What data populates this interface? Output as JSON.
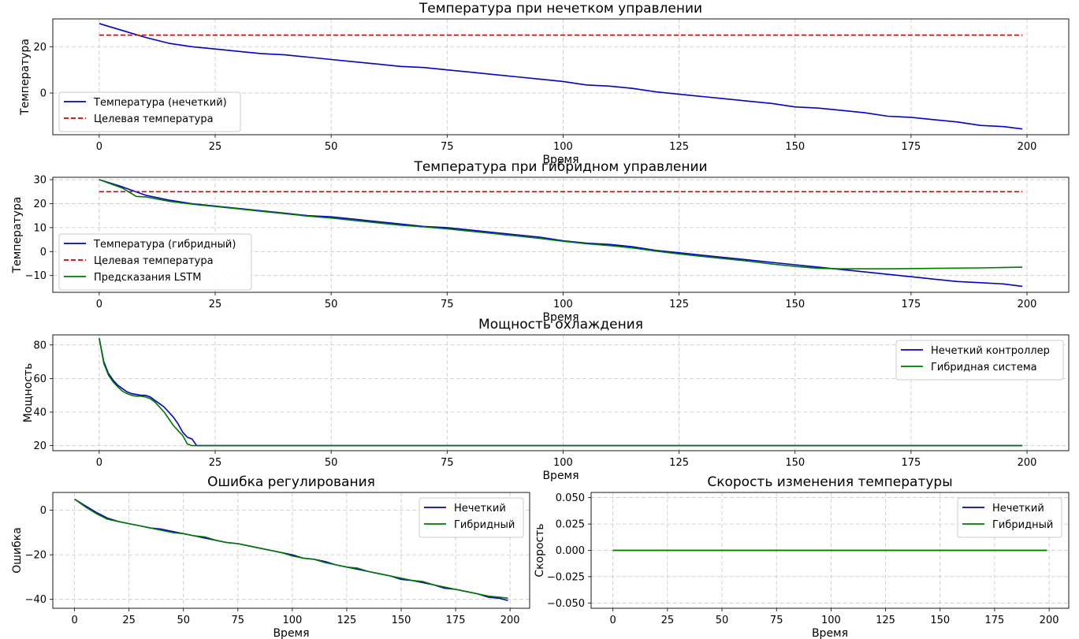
{
  "chart_data": [
    {
      "id": "p1",
      "type": "line",
      "title": "Температура при нечетком управлении",
      "xlabel": "Время",
      "ylabel": "Температура",
      "xlim": [
        -10,
        209
      ],
      "ylim": [
        -18,
        32
      ],
      "xticks": [
        0,
        25,
        50,
        75,
        100,
        125,
        150,
        175,
        200
      ],
      "yticks": [
        0,
        20
      ],
      "grid": true,
      "legend": "lower-left",
      "series": [
        {
          "name": "Температура (нечеткий)",
          "color": "#0000cc",
          "dash": "solid",
          "x": [
            0,
            5,
            10,
            15,
            20,
            25,
            30,
            35,
            40,
            45,
            50,
            55,
            60,
            65,
            70,
            75,
            80,
            85,
            90,
            95,
            100,
            105,
            110,
            115,
            120,
            125,
            130,
            135,
            140,
            145,
            150,
            155,
            160,
            165,
            170,
            175,
            180,
            185,
            190,
            195,
            199
          ],
          "y": [
            30,
            27,
            24,
            21.5,
            20,
            19,
            18,
            17,
            16.5,
            15.5,
            14.5,
            13.5,
            12.5,
            11.5,
            11,
            10,
            9,
            8,
            7,
            6,
            5,
            3.5,
            3,
            2,
            0.5,
            -0.5,
            -1.5,
            -2.5,
            -3.5,
            -4.5,
            -6,
            -6.5,
            -7.5,
            -8.5,
            -10,
            -10.5,
            -11.5,
            -12.5,
            -14,
            -14.5,
            -15.5
          ]
        },
        {
          "name": "Целевая температура",
          "color": "#cc0000",
          "dash": "dashed",
          "x": [
            0,
            199
          ],
          "y": [
            25,
            25
          ]
        }
      ]
    },
    {
      "id": "p2",
      "type": "line",
      "title": "Температура при гибридном управлении",
      "xlabel": "Время",
      "ylabel": "Температура",
      "xlim": [
        -10,
        209
      ],
      "ylim": [
        -17,
        31
      ],
      "xticks": [
        0,
        25,
        50,
        75,
        100,
        125,
        150,
        175,
        200
      ],
      "yticks": [
        -10,
        0,
        10,
        20,
        30
      ],
      "grid": true,
      "legend": "lower-left",
      "series": [
        {
          "name": "Температура (гибридный)",
          "color": "#0000cc",
          "dash": "solid",
          "x": [
            0,
            5,
            10,
            15,
            20,
            25,
            30,
            35,
            40,
            45,
            50,
            55,
            60,
            65,
            70,
            75,
            80,
            85,
            90,
            95,
            100,
            105,
            110,
            115,
            120,
            125,
            130,
            135,
            140,
            145,
            150,
            155,
            160,
            165,
            170,
            175,
            180,
            185,
            190,
            195,
            199
          ],
          "y": [
            30,
            27,
            23.5,
            21.5,
            20,
            19,
            18,
            17,
            16,
            15,
            14.5,
            13.5,
            12.5,
            11.5,
            10.5,
            10,
            9,
            8,
            7,
            6,
            4.5,
            3.5,
            3,
            2,
            0.5,
            -0.5,
            -1.5,
            -2.5,
            -3.5,
            -4.5,
            -5.5,
            -6.5,
            -7.5,
            -8.5,
            -9.5,
            -10.5,
            -11.5,
            -12.5,
            -13,
            -13.5,
            -14.5
          ]
        },
        {
          "name": "Целевая температура",
          "color": "#cc0000",
          "dash": "dashed",
          "x": [
            0,
            199
          ],
          "y": [
            25,
            25
          ]
        },
        {
          "name": "Предсказания LSTM",
          "color": "#007700",
          "dash": "solid",
          "x": [
            0,
            5,
            8,
            10,
            15,
            20,
            25,
            30,
            35,
            40,
            45,
            50,
            55,
            60,
            65,
            70,
            75,
            80,
            85,
            90,
            95,
            100,
            105,
            110,
            115,
            120,
            125,
            130,
            135,
            140,
            145,
            150,
            155,
            160,
            170,
            180,
            190,
            199
          ],
          "y": [
            30,
            26.5,
            23,
            22.8,
            21,
            19.8,
            18.8,
            17.8,
            16.8,
            15.8,
            14.8,
            14,
            13,
            12,
            11,
            10.3,
            9.5,
            8.5,
            7.5,
            6.5,
            5.5,
            4.3,
            3.3,
            2.5,
            1.5,
            0.2,
            -1,
            -2,
            -3,
            -4,
            -5.2,
            -6.2,
            -7,
            -7.2,
            -7.2,
            -7,
            -6.8,
            -6.5
          ]
        }
      ]
    },
    {
      "id": "p3",
      "type": "line",
      "title": "Мощность охлаждения",
      "xlabel": "Время",
      "ylabel": "Мощность",
      "xlim": [
        -10,
        209
      ],
      "ylim": [
        17,
        86
      ],
      "xticks": [
        0,
        25,
        50,
        75,
        100,
        125,
        150,
        175,
        200
      ],
      "yticks": [
        20,
        40,
        60,
        80
      ],
      "grid": true,
      "legend": "upper-right",
      "series": [
        {
          "name": "Нечеткий контроллер",
          "color": "#0000cc",
          "dash": "solid",
          "x": [
            0,
            1,
            2,
            3,
            4,
            5,
            6,
            7,
            8,
            9,
            10,
            11,
            12,
            13,
            14,
            15,
            16,
            17,
            18,
            19,
            20,
            21,
            25,
            50,
            100,
            150,
            199
          ],
          "y": [
            84,
            70,
            63,
            59,
            56,
            54,
            52,
            51,
            50.5,
            50,
            50,
            49,
            47,
            45,
            43,
            40,
            37,
            33,
            28,
            25,
            24,
            20,
            20,
            20,
            20,
            20,
            20
          ]
        },
        {
          "name": "Гибридная система",
          "color": "#007700",
          "dash": "solid",
          "x": [
            0,
            1,
            2,
            3,
            4,
            5,
            6,
            7,
            8,
            9,
            10,
            11,
            12,
            13,
            14,
            15,
            16,
            17,
            18,
            19,
            20,
            21,
            25,
            50,
            100,
            150,
            199
          ],
          "y": [
            84,
            69,
            62,
            58,
            55,
            52.5,
            51,
            50,
            49.5,
            49.5,
            49,
            48,
            46,
            43,
            40,
            36,
            32,
            29,
            26,
            21,
            20,
            20,
            20,
            20,
            20,
            20,
            20
          ]
        }
      ]
    },
    {
      "id": "p4",
      "type": "line",
      "title": "Ошибка регулирования",
      "xlabel": "Время",
      "ylabel": "Ошибка",
      "xlim": [
        -10,
        209
      ],
      "ylim": [
        -44,
        8
      ],
      "xticks": [
        0,
        25,
        50,
        75,
        100,
        125,
        150,
        175,
        200
      ],
      "yticks": [
        -40,
        -20,
        0
      ],
      "grid": true,
      "legend": "upper-right",
      "series": [
        {
          "name": "Нечеткий",
          "color": "#0000cc",
          "dash": "solid",
          "x": [
            0,
            5,
            10,
            15,
            20,
            25,
            30,
            35,
            40,
            45,
            50,
            55,
            60,
            65,
            70,
            75,
            80,
            85,
            90,
            95,
            100,
            105,
            110,
            115,
            120,
            125,
            130,
            135,
            140,
            145,
            150,
            155,
            160,
            165,
            170,
            175,
            180,
            185,
            190,
            195,
            199
          ],
          "y": [
            5,
            2,
            -1,
            -3.5,
            -5,
            -6,
            -7,
            -8,
            -8.5,
            -9.5,
            -10.5,
            -11.5,
            -12.5,
            -13.5,
            -14.5,
            -15,
            -16,
            -17,
            -18,
            -19,
            -20,
            -21.5,
            -22,
            -23,
            -24.5,
            -25.5,
            -26.5,
            -27.5,
            -28.5,
            -29.5,
            -31,
            -31.5,
            -32.5,
            -33.5,
            -35,
            -35.5,
            -36.5,
            -37.5,
            -39,
            -39.5,
            -40.5
          ]
        },
        {
          "name": "Гибридный",
          "color": "#007700",
          "dash": "solid",
          "x": [
            0,
            5,
            10,
            15,
            20,
            25,
            30,
            35,
            40,
            45,
            50,
            55,
            60,
            65,
            70,
            75,
            80,
            85,
            90,
            95,
            100,
            105,
            110,
            115,
            120,
            125,
            130,
            135,
            140,
            145,
            150,
            155,
            160,
            165,
            170,
            175,
            180,
            185,
            190,
            195,
            199
          ],
          "y": [
            5,
            1.5,
            -1.5,
            -4,
            -5,
            -6,
            -7,
            -8,
            -9,
            -10,
            -10.5,
            -11.5,
            -12,
            -13.5,
            -14.5,
            -15,
            -16,
            -17,
            -18,
            -19,
            -20.5,
            -21.5,
            -22,
            -23.5,
            -24.5,
            -25.5,
            -26,
            -27.5,
            -28.5,
            -29.5,
            -30.5,
            -31.5,
            -32,
            -33.5,
            -34.5,
            -35.5,
            -36.5,
            -37.5,
            -38.5,
            -39,
            -39.5
          ]
        }
      ]
    },
    {
      "id": "p5",
      "type": "line",
      "title": "Скорость изменения температуры",
      "xlabel": "Время",
      "ylabel": "Скорость",
      "xlim": [
        -10,
        209
      ],
      "ylim": [
        -0.055,
        0.055
      ],
      "xticks": [
        0,
        25,
        50,
        75,
        100,
        125,
        150,
        175,
        200
      ],
      "yticks": [
        -0.05,
        -0.025,
        0,
        0.025,
        0.05
      ],
      "yticklabels": [
        "−0.050",
        "−0.025",
        "0.000",
        "0.025",
        "0.050"
      ],
      "grid": true,
      "legend": "upper-right",
      "series": [
        {
          "name": "Нечеткий",
          "color": "#0000cc",
          "dash": "solid",
          "x": [
            0,
            199
          ],
          "y": [
            0,
            0
          ]
        },
        {
          "name": "Гибридный",
          "color": "#007700",
          "dash": "solid",
          "x": [
            0,
            199
          ],
          "y": [
            0,
            0
          ]
        }
      ]
    }
  ]
}
